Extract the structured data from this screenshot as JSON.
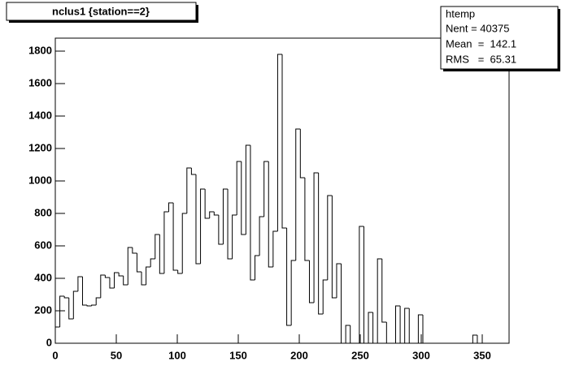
{
  "chart_data": {
    "type": "histogram",
    "title": "nclus1 {station==2}",
    "bins": [
      0,
      3.72,
      7.44,
      11.16,
      14.88,
      18.6,
      22.32,
      26.04,
      29.76,
      33.48,
      37.2,
      40.92,
      44.64,
      48.36,
      52.08,
      55.8,
      59.52,
      63.24,
      66.96,
      70.68,
      74.4,
      78.12,
      81.84,
      85.56,
      89.28,
      93,
      96.72,
      100.44,
      104.16,
      107.88,
      111.6,
      115.32,
      119.04,
      122.76,
      126.48,
      130.2,
      133.92,
      137.64,
      141.36,
      145.08,
      148.8,
      152.52,
      156.24,
      159.96,
      163.68,
      167.4,
      171.12,
      174.84,
      178.56,
      182.28,
      186,
      189.72,
      193.44,
      197.16,
      200.88,
      204.6,
      208.32,
      212.04,
      215.76,
      219.48,
      223.2,
      226.92,
      230.64,
      234.36,
      238.08,
      241.8,
      245.52,
      249.24,
      252.96,
      256.68,
      260.4,
      264.12,
      267.84,
      271.56,
      275.28,
      279,
      282.72,
      286.44,
      290.16,
      293.88,
      297.6,
      301.32,
      305.04,
      308.76,
      312.48,
      316.2,
      319.92,
      323.64,
      327.36,
      331.08,
      334.8,
      338.52,
      342.24,
      345.96,
      349.68,
      353.4,
      357.12,
      360.84,
      364.56,
      368.28,
      372
    ],
    "values": [
      100,
      290,
      280,
      150,
      320,
      410,
      235,
      230,
      235,
      280,
      420,
      405,
      340,
      435,
      415,
      360,
      590,
      555,
      440,
      360,
      470,
      520,
      670,
      430,
      810,
      865,
      450,
      430,
      800,
      1080,
      1040,
      490,
      950,
      770,
      810,
      790,
      610,
      950,
      520,
      790,
      1120,
      670,
      1220,
      390,
      540,
      780,
      1120,
      470,
      690,
      1780,
      710,
      110,
      510,
      1320,
      1020,
      510,
      250,
      1050,
      180,
      390,
      910,
      280,
      490,
      0,
      110,
      0,
      0,
      720,
      0,
      190,
      0,
      520,
      130,
      0,
      0,
      230,
      0,
      215,
      0,
      0,
      175,
      0,
      0,
      0,
      0,
      0,
      0,
      0,
      0,
      0,
      0,
      0,
      50,
      0,
      0,
      0,
      0,
      0,
      0,
      0
    ],
    "color": "#000000",
    "xlim": [
      0,
      372
    ],
    "xticks": [
      0,
      50,
      100,
      150,
      200,
      250,
      300,
      350
    ],
    "ylim": [
      0,
      1880
    ],
    "yticks": [
      0,
      200,
      400,
      600,
      800,
      1000,
      1200,
      1400,
      1600,
      1800
    ],
    "stats": {
      "title": "htemp",
      "lines": [
        "Nent = 40375",
        "Mean  =  142.1",
        "RMS   =  65.31"
      ]
    }
  }
}
